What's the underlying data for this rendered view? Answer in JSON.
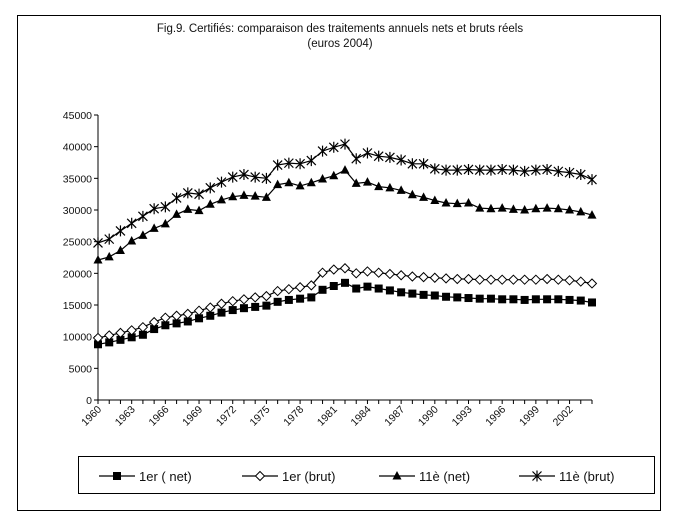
{
  "chart_data": {
    "type": "line",
    "title": "Fig.9. Certifiés: comparaison des traitements annuels nets et bruts réels",
    "subtitle": "(euros 2004)",
    "ylim": [
      0,
      45000
    ],
    "yticks": [
      0,
      5000,
      10000,
      15000,
      20000,
      25000,
      30000,
      35000,
      40000,
      45000
    ],
    "xticks": [
      "1960",
      "1963",
      "1966",
      "1969",
      "1972",
      "1975",
      "1978",
      "1981",
      "1984",
      "1987",
      "1990",
      "1993",
      "1996",
      "1999",
      "2002"
    ],
    "x": [
      1960,
      1961,
      1962,
      1963,
      1964,
      1965,
      1966,
      1967,
      1968,
      1969,
      1970,
      1971,
      1972,
      1973,
      1974,
      1975,
      1976,
      1977,
      1978,
      1979,
      1980,
      1981,
      1982,
      1983,
      1984,
      1985,
      1986,
      1987,
      1988,
      1989,
      1990,
      1991,
      1992,
      1993,
      1994,
      1995,
      1996,
      1997,
      1998,
      1999,
      2000,
      2001,
      2002,
      2003,
      2004
    ],
    "grid": false,
    "legend_position": "bottom",
    "series": [
      {
        "name": "1er ( net)",
        "marker": "square",
        "color": "#000000",
        "values": [
          8800,
          9100,
          9500,
          9900,
          10300,
          11200,
          11800,
          12100,
          12400,
          12900,
          13300,
          13800,
          14200,
          14500,
          14700,
          14900,
          15500,
          15800,
          16000,
          16200,
          17400,
          18000,
          18500,
          17600,
          17900,
          17600,
          17300,
          17000,
          16800,
          16600,
          16500,
          16300,
          16200,
          16100,
          16000,
          16000,
          15900,
          15900,
          15800,
          15900,
          15900,
          15900,
          15800,
          15700,
          15400
        ]
      },
      {
        "name": "1er (brut)",
        "marker": "diamond",
        "color": "#000000",
        "values": [
          9800,
          10200,
          10600,
          11000,
          11500,
          12300,
          13000,
          13300,
          13600,
          14100,
          14600,
          15200,
          15600,
          15900,
          16200,
          16400,
          17200,
          17500,
          17800,
          18100,
          20100,
          20600,
          20800,
          20000,
          20300,
          20100,
          19900,
          19700,
          19500,
          19400,
          19300,
          19200,
          19100,
          19100,
          19000,
          19000,
          19000,
          19000,
          19000,
          19000,
          19100,
          19000,
          18900,
          18700,
          18400
        ]
      },
      {
        "name": "11è (net)",
        "marker": "triangle",
        "color": "#000000",
        "values": [
          22100,
          22600,
          23600,
          25100,
          26000,
          27100,
          27800,
          29300,
          30100,
          29900,
          30900,
          31600,
          32100,
          32300,
          32200,
          32000,
          34000,
          34300,
          33800,
          34300,
          34900,
          35400,
          36300,
          34200,
          34400,
          33700,
          33500,
          33100,
          32400,
          32000,
          31500,
          31100,
          31000,
          31100,
          30300,
          30200,
          30300,
          30100,
          30000,
          30200,
          30300,
          30200,
          30000,
          29700,
          29200
        ]
      },
      {
        "name": "11è (brut)",
        "marker": "star",
        "color": "#000000",
        "values": [
          24800,
          25400,
          26700,
          27900,
          29000,
          30200,
          30500,
          31900,
          32700,
          32500,
          33500,
          34400,
          35200,
          35600,
          35200,
          35000,
          37100,
          37400,
          37300,
          37800,
          39300,
          39900,
          40400,
          38100,
          39000,
          38500,
          38300,
          37900,
          37300,
          37300,
          36500,
          36300,
          36300,
          36400,
          36300,
          36300,
          36400,
          36300,
          36100,
          36300,
          36400,
          36100,
          35900,
          35600,
          34800
        ]
      }
    ]
  }
}
